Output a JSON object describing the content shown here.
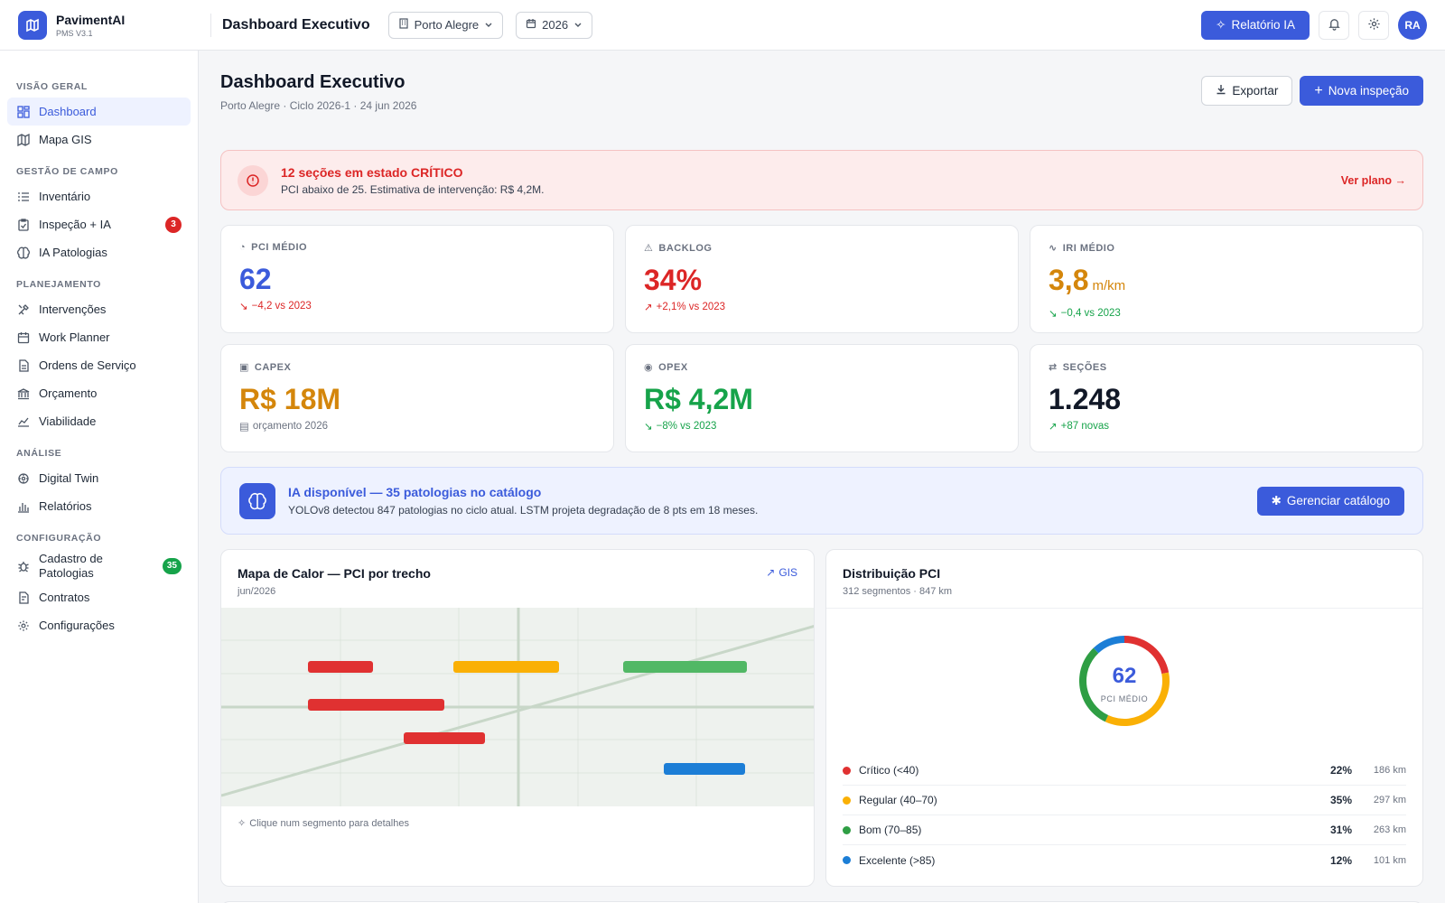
{
  "brand": {
    "name": "PavimentAI",
    "version": "PMS V3.1"
  },
  "topbar": {
    "title": "Dashboard Executivo",
    "city": "Porto Alegre",
    "year": "2026",
    "ai_report_label": "Relatório IA",
    "avatar_initials": "RA"
  },
  "sidebar": {
    "sections": [
      {
        "label": "VISÃO GERAL",
        "items": [
          {
            "label": "Dashboard",
            "icon": "dashboard-icon",
            "active": true
          },
          {
            "label": "Mapa GIS",
            "icon": "map-icon"
          }
        ]
      },
      {
        "label": "GESTÃO DE CAMPO",
        "items": [
          {
            "label": "Inventário",
            "icon": "list-icon"
          },
          {
            "label": "Inspeção + IA",
            "icon": "clipboard-icon",
            "badge": "3"
          },
          {
            "label": "IA Patologias",
            "icon": "brain-icon"
          }
        ]
      },
      {
        "label": "PLANEJAMENTO",
        "items": [
          {
            "label": "Intervenções",
            "icon": "tools-icon"
          },
          {
            "label": "Work Planner",
            "icon": "calendar-icon"
          },
          {
            "label": "Ordens de Serviço",
            "icon": "document-icon"
          },
          {
            "label": "Orçamento",
            "icon": "bank-icon"
          },
          {
            "label": "Viabilidade",
            "icon": "chart-line-icon"
          }
        ]
      },
      {
        "label": "ANÁLISE",
        "items": [
          {
            "label": "Digital Twin",
            "icon": "twin-icon"
          },
          {
            "label": "Relatórios",
            "icon": "bar-chart-icon"
          }
        ]
      },
      {
        "label": "CONFIGURAÇÃO",
        "items": [
          {
            "label": "Cadastro de Patologias",
            "icon": "bug-icon",
            "badge": "35"
          },
          {
            "label": "Contratos",
            "icon": "contract-icon"
          },
          {
            "label": "Configurações",
            "icon": "gear-icon"
          }
        ]
      }
    ]
  },
  "page": {
    "title": "Dashboard Executivo",
    "subtitle": "Porto Alegre · Ciclo 2026-1 · 24 jun 2026",
    "export_label": "Exportar",
    "new_inspection_label": "Nova inspeção"
  },
  "alert": {
    "title": "12 seções em estado CRÍTICO",
    "text": "PCI abaixo de 25. Estimativa de intervenção: R$ 4,2M.",
    "link": "Ver plano →"
  },
  "kpis": [
    {
      "label": "PCI MÉDIO",
      "value": "62",
      "unit": "",
      "delta": "−4,2 vs 2023",
      "value_color": "#3b5bdb",
      "delta_color": "#dc2626",
      "delta_icon": "↘"
    },
    {
      "label": "BACKLOG",
      "value": "34%",
      "unit": "",
      "delta": "+2,1% vs 2023",
      "value_color": "#dc2626",
      "delta_color": "#dc2626",
      "delta_icon": "↗"
    },
    {
      "label": "IRI MÉDIO",
      "value": "3,8",
      "unit": "m/km",
      "delta": "−0,4 vs 2023",
      "value_color": "#d4860b",
      "delta_color": "#16a34a",
      "delta_icon": "↘"
    },
    {
      "label": "CAPEX",
      "value": "R$ 18M",
      "unit": "",
      "delta": "orçamento 2026",
      "value_color": "#d4860b",
      "delta_color": "#6b7280",
      "delta_icon": "▤"
    },
    {
      "label": "OPEX",
      "value": "R$ 4,2M",
      "unit": "",
      "delta": "−8% vs 2023",
      "value_color": "#16a34a",
      "delta_color": "#16a34a",
      "delta_icon": "↘"
    },
    {
      "label": "SEÇÕES",
      "value": "1.248",
      "unit": "",
      "delta": "+87 novas",
      "value_color": "#111827",
      "delta_color": "#16a34a",
      "delta_icon": "↗"
    }
  ],
  "ai_banner": {
    "title": "IA disponível — 35 patologias no catálogo",
    "text": "YOLOv8 detectou 847 patologias no ciclo atual. LSTM projeta degradação de 8 pts em 18 meses.",
    "button": "Gerenciar catálogo"
  },
  "heatmap": {
    "title": "Mapa de Calor — PCI por trecho",
    "subtitle": "jun/2026",
    "link": "GIS",
    "footer": "Clique num segmento para detalhes"
  },
  "distribution": {
    "title": "Distribuição PCI",
    "subtitle": "312 segmentos · 847 km",
    "center_value": "62",
    "center_label": "PCI MÉDIO",
    "rows": [
      {
        "label": "Crítico (<40)",
        "pct": "22%",
        "km": "186 km",
        "color": "#e03131",
        "value": 22
      },
      {
        "label": "Regular (40–70)",
        "pct": "35%",
        "km": "297 km",
        "color": "#fab005",
        "value": 35
      },
      {
        "label": "Bom (70–85)",
        "pct": "31%",
        "km": "263 km",
        "color": "#2f9e44",
        "value": 31
      },
      {
        "label": "Excelente (>85)",
        "pct": "12%",
        "km": "101 km",
        "color": "#1c7ed6",
        "value": 12
      }
    ]
  },
  "colors": {
    "accent": "#3b5bdb",
    "critical": "#e03131",
    "regular": "#fab005",
    "good": "#2f9e44",
    "excellent": "#1c7ed6"
  }
}
